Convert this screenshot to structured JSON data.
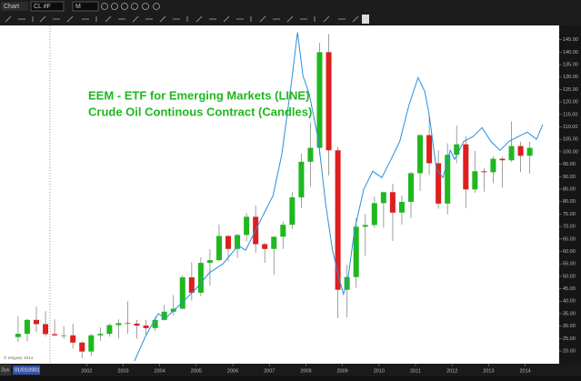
{
  "toolbar": {
    "tab": "Chart",
    "symbol": "CL #F",
    "interval": "M"
  },
  "chart_data": {
    "type": "candlestick",
    "annotations": [
      "EEM - ETF for Emerging Markets (LINE)",
      "Crude Oil Continous Contract (Candles)"
    ],
    "candles": {
      "x": [
        2000.125,
        2000.375,
        2000.625,
        2000.875,
        2001.125,
        2001.375,
        2001.625,
        2001.875,
        2002.125,
        2002.375,
        2002.625,
        2002.875,
        2003.125,
        2003.375,
        2003.625,
        2003.875,
        2004.125,
        2004.375,
        2004.625,
        2004.875,
        2005.125,
        2005.375,
        2005.625,
        2005.875,
        2006.125,
        2006.375,
        2006.625,
        2006.875,
        2007.125,
        2007.375,
        2007.625,
        2007.875,
        2008.125,
        2008.375,
        2008.625,
        2008.875,
        2009.125,
        2009.375,
        2009.625,
        2009.875,
        2010.125,
        2010.375,
        2010.625,
        2010.875,
        2011.125,
        2011.375,
        2011.625,
        2011.875,
        2012.125,
        2012.375,
        2012.625,
        2012.875,
        2013.125,
        2013.375,
        2013.625,
        2013.875,
        2014.125
      ],
      "open": [
        25.6,
        26.9,
        32.5,
        30.8,
        26.8,
        26.3,
        26.3,
        23.4,
        19.8,
        26.3,
        26.9,
        30.4,
        31.2,
        31,
        30.2,
        29.2,
        32.5,
        35.8,
        37,
        49.6,
        43.4,
        55.4,
        56.5,
        66.2,
        61,
        66.6,
        73.9,
        62.9,
        61,
        65.9,
        70.7,
        81.7,
        96,
        101.6,
        140,
        100.6,
        44.6,
        49.7,
        69.9,
        70.6,
        79.4,
        83.8,
        75.6,
        79.9,
        91.4,
        106.7,
        95.4,
        79.2,
        98.8,
        103,
        84.9,
        92.2,
        91.8,
        97.2,
        96.6,
        102.3,
        98.4
      ],
      "high": [
        34,
        33,
        37.8,
        36,
        32.7,
        30,
        31,
        23.9,
        27,
        29.5,
        31,
        32.7,
        39.9,
        32.5,
        32.5,
        33.7,
        38.5,
        42.5,
        50.5,
        55.7,
        57.6,
        60.9,
        70.8,
        66.5,
        67,
        75.4,
        78.4,
        63.5,
        66,
        72,
        83.9,
        99.3,
        111.8,
        143.7,
        147.3,
        102,
        54.7,
        73.4,
        75,
        82,
        84,
        87.2,
        82.5,
        92,
        107,
        114.8,
        100.6,
        103.4,
        110.5,
        106.4,
        100.4,
        93.4,
        98.2,
        98,
        112.2,
        104,
        104
      ],
      "low": [
        23.7,
        24,
        27.5,
        25.8,
        26,
        25,
        21,
        17.1,
        17.9,
        24,
        25.8,
        25,
        26.9,
        25,
        26.5,
        28,
        32.2,
        34.3,
        36.8,
        40.2,
        42,
        46.2,
        56,
        56,
        57.5,
        64,
        59.5,
        55.4,
        50.5,
        61,
        69,
        77.5,
        86,
        98.6,
        90.5,
        33.2,
        33.5,
        45.4,
        58.3,
        69.5,
        69.5,
        64.2,
        70.8,
        73.4,
        84.3,
        90.6,
        77.1,
        74.9,
        95.4,
        77.3,
        83.6,
        84,
        87.4,
        85.6,
        96,
        91.8,
        91.2
      ],
      "close": [
        26.9,
        32.5,
        30.8,
        26.8,
        26.3,
        26.3,
        23.4,
        19.8,
        26.3,
        26.9,
        30.4,
        31.2,
        31,
        30.2,
        29.2,
        32.5,
        35.8,
        37,
        49.6,
        43.4,
        55.4,
        56.5,
        66.2,
        61,
        66.6,
        73.9,
        62.9,
        61,
        65.9,
        70.7,
        81.7,
        96,
        101.6,
        140,
        100.6,
        44.6,
        49.7,
        69.9,
        70.6,
        79.4,
        83.8,
        75.6,
        79.9,
        91.4,
        106.7,
        95.4,
        79.2,
        98.8,
        103,
        84.9,
        92.2,
        91.8,
        97.2,
        96.6,
        102.3,
        98.4,
        101.6
      ],
      "up_color": "#1fb81f",
      "down_color": "#dd1f1f"
    },
    "line": {
      "x": [
        2003.31,
        2003.61,
        2003.96,
        2004.16,
        2004.61,
        2004.98,
        2005.36,
        2005.73,
        2006.15,
        2006.35,
        2006.6,
        2006.85,
        2007.1,
        2007.34,
        2007.59,
        2007.77,
        2007.92,
        2008.09,
        2008.34,
        2008.54,
        2008.72,
        2008.89,
        2009.03,
        2009.16,
        2009.33,
        2009.58,
        2009.83,
        2010.08,
        2010.33,
        2010.57,
        2010.82,
        2011.07,
        2011.25,
        2011.37,
        2011.57,
        2011.75,
        2011.95,
        2012.07,
        2012.32,
        2012.57,
        2012.82,
        2013.06,
        2013.31,
        2013.56,
        2013.81,
        2014.06,
        2014.31,
        2014.48
      ],
      "values": [
        16,
        25.9,
        35,
        33.2,
        39.4,
        44.8,
        51.4,
        55,
        62.4,
        60.5,
        67.8,
        75.1,
        82.4,
        98.9,
        126.3,
        148,
        130.5,
        123.2,
        104.9,
        79.3,
        61.1,
        50.2,
        42.8,
        50.2,
        68.5,
        84.9,
        92.2,
        89.6,
        97,
        104.2,
        118.8,
        129.8,
        124.3,
        115.2,
        93.3,
        89.6,
        100.6,
        97,
        104.2,
        106.1,
        109.7,
        104.2,
        100.6,
        104.2,
        106.1,
        107.9,
        105,
        110.9
      ],
      "color": "#2a8fdc"
    },
    "xlim": [
      1999.63,
      2014.93
    ],
    "xticks": [
      2002,
      2003,
      2004,
      2005,
      2006,
      2007,
      2008,
      2009,
      2010,
      2011,
      2012,
      2013,
      2014
    ],
    "ylim": [
      16,
      150
    ],
    "yticks": [
      {
        "value": 20,
        "label": "20.00"
      },
      {
        "value": 25,
        "label": "25.00"
      },
      {
        "value": 30,
        "label": "30.00"
      },
      {
        "value": 35,
        "label": "35.00"
      },
      {
        "value": 40,
        "label": "40.00"
      },
      {
        "value": 45,
        "label": "45.00"
      },
      {
        "value": 50,
        "label": "50.00"
      },
      {
        "value": 55,
        "label": "55.00"
      },
      {
        "value": 60,
        "label": "60.00"
      },
      {
        "value": 65,
        "label": "65.00"
      },
      {
        "value": 70,
        "label": "70.00"
      },
      {
        "value": 75,
        "label": "75.00"
      },
      {
        "value": 80,
        "label": "80.00"
      },
      {
        "value": 85,
        "label": "85.00"
      },
      {
        "value": 90,
        "label": "90.00"
      },
      {
        "value": 95,
        "label": "95.00"
      },
      {
        "value": 100,
        "label": "100.00"
      },
      {
        "value": 105,
        "label": "105.00"
      },
      {
        "value": 110,
        "label": "110.00"
      },
      {
        "value": 115,
        "label": "115.00"
      },
      {
        "value": 120,
        "label": "120.00"
      },
      {
        "value": 125,
        "label": "125.00"
      },
      {
        "value": 130,
        "label": "130.00"
      },
      {
        "value": 135,
        "label": "135.00"
      },
      {
        "value": 140,
        "label": "140.00"
      },
      {
        "value": 145,
        "label": "145.00"
      }
    ]
  },
  "footer": {
    "copyright": "© eSignal, 2014",
    "mode": "Dyn",
    "cursor_date": "01/01/2001"
  }
}
